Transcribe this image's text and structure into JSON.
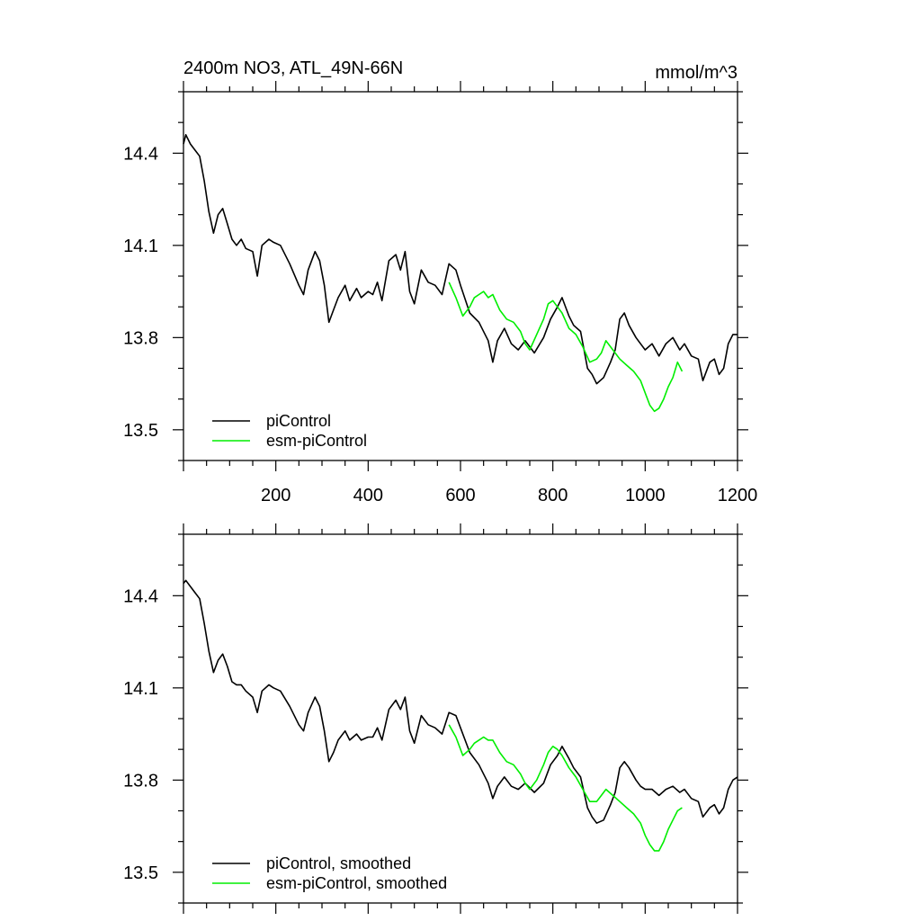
{
  "header": {
    "title_left": "2400m NO3, ATL_49N-66N",
    "title_right": "mmol/m^3"
  },
  "colors": {
    "piControl": "#000000",
    "esm_piControl": "#00ee00",
    "axis": "#000000",
    "background": "#ffffff"
  },
  "chart_data": [
    {
      "type": "line",
      "panel": "top",
      "xlim": [
        0,
        1200
      ],
      "ylim": [
        13.4,
        14.6
      ],
      "xticks": [
        200,
        400,
        600,
        800,
        1000,
        1200
      ],
      "xtick_labels": [
        "200",
        "400",
        "600",
        "800",
        "1000",
        "1200"
      ],
      "yticks": [
        13.5,
        13.8,
        14.1,
        14.4
      ],
      "ytick_labels": [
        "13.5",
        "13.8",
        "14.1",
        "14.4"
      ],
      "legend": [
        "piControl",
        "esm-piControl"
      ],
      "legend_position": "bottom-left",
      "series": [
        {
          "name": "piControl",
          "color": "#000000",
          "x": [
            0,
            5,
            15,
            25,
            35,
            45,
            55,
            65,
            75,
            85,
            95,
            105,
            115,
            125,
            135,
            150,
            160,
            170,
            185,
            195,
            210,
            230,
            250,
            260,
            270,
            285,
            295,
            305,
            315,
            325,
            335,
            350,
            360,
            375,
            385,
            400,
            410,
            420,
            430,
            445,
            460,
            470,
            480,
            490,
            500,
            515,
            530,
            545,
            560,
            575,
            590,
            600,
            620,
            640,
            660,
            670,
            680,
            695,
            710,
            725,
            740,
            760,
            780,
            795,
            810,
            820,
            835,
            845,
            860,
            875,
            885,
            895,
            910,
            925,
            935,
            945,
            955,
            965,
            980,
            990,
            1000,
            1015,
            1030,
            1045,
            1060,
            1075,
            1085,
            1100,
            1115,
            1125,
            1140,
            1150,
            1160,
            1170,
            1180,
            1190,
            1200
          ],
          "y": [
            14.43,
            14.46,
            14.43,
            14.41,
            14.39,
            14.31,
            14.21,
            14.14,
            14.2,
            14.22,
            14.17,
            14.12,
            14.1,
            14.12,
            14.09,
            14.08,
            14.0,
            14.1,
            14.12,
            14.11,
            14.1,
            14.04,
            13.97,
            13.94,
            14.02,
            14.08,
            14.05,
            13.97,
            13.85,
            13.89,
            13.93,
            13.97,
            13.92,
            13.96,
            13.93,
            13.95,
            13.94,
            13.98,
            13.92,
            14.05,
            14.07,
            14.02,
            14.08,
            13.95,
            13.91,
            14.02,
            13.98,
            13.97,
            13.94,
            14.04,
            14.02,
            13.97,
            13.88,
            13.85,
            13.79,
            13.72,
            13.79,
            13.83,
            13.78,
            13.76,
            13.79,
            13.75,
            13.8,
            13.86,
            13.9,
            13.93,
            13.87,
            13.84,
            13.82,
            13.7,
            13.68,
            13.65,
            13.67,
            13.72,
            13.76,
            13.86,
            13.88,
            13.84,
            13.8,
            13.78,
            13.76,
            13.78,
            13.74,
            13.78,
            13.8,
            13.76,
            13.78,
            13.74,
            13.73,
            13.66,
            13.72,
            13.73,
            13.68,
            13.7,
            13.78,
            13.81,
            13.81
          ]
        },
        {
          "name": "esm-piControl",
          "color": "#00ee00",
          "x": [
            575,
            590,
            605,
            620,
            630,
            640,
            650,
            660,
            670,
            685,
            700,
            715,
            730,
            740,
            750,
            765,
            780,
            790,
            800,
            810,
            820,
            835,
            850,
            865,
            880,
            895,
            905,
            915,
            930,
            945,
            960,
            975,
            990,
            1000,
            1010,
            1020,
            1030,
            1040,
            1050,
            1060,
            1070,
            1080
          ],
          "y": [
            13.98,
            13.93,
            13.87,
            13.9,
            13.93,
            13.94,
            13.95,
            13.93,
            13.94,
            13.89,
            13.86,
            13.85,
            13.82,
            13.78,
            13.76,
            13.81,
            13.86,
            13.91,
            13.92,
            13.9,
            13.88,
            13.83,
            13.81,
            13.77,
            13.72,
            13.73,
            13.75,
            13.79,
            13.76,
            13.73,
            13.71,
            13.69,
            13.66,
            13.62,
            13.58,
            13.56,
            13.57,
            13.6,
            13.64,
            13.67,
            13.72,
            13.69
          ]
        }
      ]
    },
    {
      "type": "line",
      "panel": "bottom",
      "xlim": [
        0,
        1200
      ],
      "ylim": [
        13.4,
        14.6
      ],
      "xticks": [
        200,
        400,
        600,
        800,
        1000,
        1200
      ],
      "yticks": [
        13.5,
        13.8,
        14.1,
        14.4
      ],
      "ytick_labels": [
        "13.5",
        "13.8",
        "14.1",
        "14.4"
      ],
      "legend": [
        "piControl, smoothed",
        "esm-piControl, smoothed"
      ],
      "legend_position": "bottom-left",
      "series": [
        {
          "name": "piControl, smoothed",
          "color": "#000000",
          "x": [
            0,
            5,
            15,
            25,
            35,
            45,
            55,
            65,
            75,
            85,
            95,
            105,
            115,
            125,
            135,
            150,
            160,
            170,
            185,
            195,
            210,
            230,
            250,
            260,
            270,
            285,
            295,
            305,
            315,
            325,
            335,
            350,
            360,
            375,
            385,
            400,
            410,
            420,
            430,
            445,
            460,
            470,
            480,
            490,
            500,
            515,
            530,
            545,
            560,
            575,
            590,
            600,
            620,
            640,
            660,
            670,
            680,
            695,
            710,
            725,
            740,
            760,
            780,
            795,
            810,
            820,
            835,
            845,
            860,
            875,
            885,
            895,
            910,
            925,
            935,
            945,
            955,
            965,
            980,
            990,
            1000,
            1015,
            1030,
            1045,
            1060,
            1075,
            1085,
            1100,
            1115,
            1125,
            1140,
            1150,
            1160,
            1170,
            1180,
            1190,
            1200
          ],
          "y": [
            14.44,
            14.45,
            14.43,
            14.41,
            14.39,
            14.31,
            14.22,
            14.15,
            14.19,
            14.21,
            14.17,
            14.12,
            14.11,
            14.11,
            14.09,
            14.07,
            14.02,
            14.09,
            14.11,
            14.1,
            14.09,
            14.04,
            13.98,
            13.96,
            14.02,
            14.07,
            14.04,
            13.96,
            13.86,
            13.89,
            13.93,
            13.96,
            13.93,
            13.95,
            13.93,
            13.94,
            13.94,
            13.97,
            13.93,
            14.03,
            14.06,
            14.03,
            14.07,
            13.96,
            13.92,
            14.01,
            13.98,
            13.97,
            13.95,
            14.02,
            14.01,
            13.97,
            13.89,
            13.85,
            13.79,
            13.74,
            13.78,
            13.81,
            13.78,
            13.77,
            13.79,
            13.76,
            13.79,
            13.85,
            13.88,
            13.91,
            13.87,
            13.84,
            13.81,
            13.71,
            13.68,
            13.66,
            13.67,
            13.72,
            13.76,
            13.84,
            13.86,
            13.84,
            13.8,
            13.78,
            13.77,
            13.77,
            13.75,
            13.77,
            13.78,
            13.76,
            13.77,
            13.74,
            13.73,
            13.68,
            13.71,
            13.72,
            13.69,
            13.71,
            13.77,
            13.8,
            13.81
          ]
        },
        {
          "name": "esm-piControl, smoothed",
          "color": "#00ee00",
          "x": [
            575,
            590,
            605,
            620,
            630,
            640,
            650,
            660,
            670,
            685,
            700,
            715,
            730,
            740,
            750,
            765,
            780,
            790,
            800,
            810,
            820,
            835,
            850,
            865,
            880,
            895,
            905,
            915,
            930,
            945,
            960,
            975,
            990,
            1000,
            1010,
            1020,
            1030,
            1040,
            1050,
            1060,
            1070,
            1080
          ],
          "y": [
            13.98,
            13.94,
            13.88,
            13.9,
            13.92,
            13.93,
            13.94,
            13.93,
            13.93,
            13.89,
            13.86,
            13.85,
            13.82,
            13.79,
            13.77,
            13.8,
            13.85,
            13.89,
            13.91,
            13.9,
            13.88,
            13.84,
            13.81,
            13.77,
            13.73,
            13.73,
            13.75,
            13.77,
            13.75,
            13.73,
            13.71,
            13.69,
            13.66,
            13.62,
            13.59,
            13.57,
            13.57,
            13.6,
            13.64,
            13.67,
            13.7,
            13.71
          ]
        }
      ]
    }
  ]
}
